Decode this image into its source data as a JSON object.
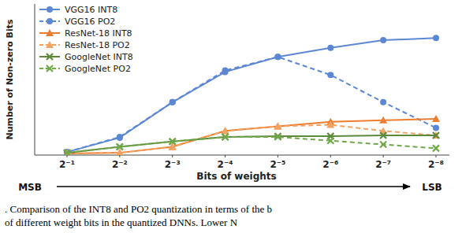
{
  "chart_data": {
    "type": "line",
    "x_label": "Bits of weights",
    "y_label": "Number of Non-zero Bits",
    "annotations": [
      "MSB",
      "LSB"
    ],
    "caption": [
      ". Comparison of the INT8 and PO2 quantization in terms of the b",
      "of different weight bits in the quantized DNNs. Lower N"
    ],
    "categories": [
      "2⁻¹",
      "2⁻²",
      "2⁻³",
      "2⁻⁴",
      "2⁻⁵",
      "2⁻⁶",
      "2⁻⁷",
      "2⁻⁸"
    ],
    "ylim": [
      0,
      100
    ],
    "tick_labels": "x",
    "legend": "upper left",
    "series": [
      {
        "name": "VGG16 INT8",
        "color": "#5b87d3",
        "marker": "circle",
        "line_style": "solid",
        "values": [
          2,
          11.5,
          35,
          55,
          65,
          71,
          76,
          77.5
        ]
      },
      {
        "name": "VGG16 PO2",
        "color": "#5b87d3",
        "marker": "circle",
        "line_style": "dashed",
        "values": [
          2,
          12,
          35,
          56,
          65,
          53,
          35,
          18
        ]
      },
      {
        "name": "ResNet-18 INT8",
        "color": "#ed7d31",
        "marker": "triangle",
        "line_style": "solid",
        "values": [
          1,
          1.5,
          5.5,
          16,
          19,
          22,
          23,
          24
        ]
      },
      {
        "name": "ResNet-18 PO2",
        "color": "#f4a261",
        "marker": "triangle",
        "line_style": "dashed",
        "values": [
          1,
          1.5,
          5.5,
          16,
          19,
          20,
          16,
          13
        ]
      },
      {
        "name": "GoogleNet INT8",
        "color": "#5b8a3c",
        "marker": "x",
        "line_style": "solid",
        "values": [
          1.5,
          5.5,
          9,
          12,
          12.5,
          12.5,
          13,
          13
        ]
      },
      {
        "name": "GoogleNet PO2",
        "color": "#70a84a",
        "marker": "x",
        "line_style": "dashed",
        "values": [
          1.5,
          5.5,
          9,
          12,
          12,
          9.5,
          7,
          4.5
        ]
      }
    ]
  }
}
